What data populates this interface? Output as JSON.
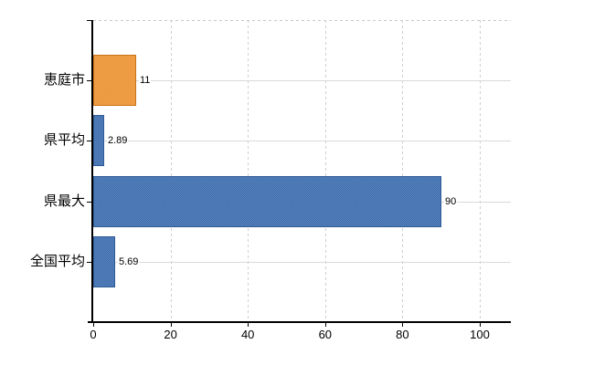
{
  "chart_data": {
    "type": "bar",
    "orientation": "horizontal",
    "title": "",
    "categories": [
      "恵庭市",
      "県平均",
      "県最大",
      "全国平均"
    ],
    "values": [
      11,
      2.89,
      90,
      5.69
    ],
    "value_labels": [
      "11",
      "2.89",
      "90",
      "5.69"
    ],
    "series": [
      {
        "name": "",
        "values": [
          11,
          2.89,
          90,
          5.69
        ]
      }
    ],
    "x_ticks": [
      0,
      20,
      40,
      60,
      80,
      100
    ],
    "x_tick_labels": [
      "0",
      "20",
      "40",
      "60",
      "80",
      "100"
    ],
    "xlim": [
      0,
      108
    ],
    "grid": true,
    "legend": false,
    "bar_colors": [
      "#ec9232",
      "#3b6cae",
      "#3b6cae",
      "#3b6cae"
    ],
    "bar_border_colors": [
      "#c97317",
      "#2e5a94",
      "#2e5a94",
      "#2e5a94"
    ]
  },
  "colors": {
    "background": "#ffffff",
    "axis": "#000000",
    "gridline_solid": "#d9d9d9",
    "gridline_dashed": "#cfcfcf",
    "text": "#000000",
    "bar_orange": "#ec9232",
    "bar_blue": "#3b6cae"
  }
}
